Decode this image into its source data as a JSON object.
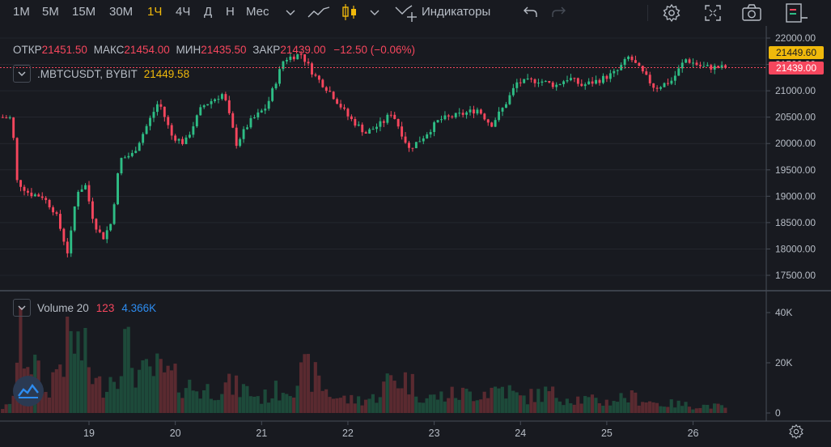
{
  "toolbar": {
    "timeframes": [
      "1М",
      "5М",
      "15М",
      "30М",
      "1Ч",
      "4Ч",
      "Д",
      "Н",
      "Мес"
    ],
    "active_timeframe": "1Ч",
    "indicators_label": "Индикаторы",
    "icons": [
      "chevron-down-icon",
      "line-chart-icon",
      "candlestick-icon",
      "chevron-down-icon",
      "indicators-icon",
      "undo-icon",
      "redo-icon",
      "settings-icon",
      "fullscreen-icon",
      "camera-icon",
      "exit-icon"
    ]
  },
  "legend": {
    "open_label": "ОТКР",
    "open_value": "21451.50",
    "high_label": "МАКС",
    "high_value": "21454.00",
    "low_label": "МИН",
    "low_value": "21435.50",
    "close_label": "ЗАКР",
    "close_value": "21439.00",
    "change": "−12.50 (−0.06%)"
  },
  "symbol": {
    "name": ".MBTCUSDT, BYBIT",
    "last": "21449.58"
  },
  "volume": {
    "title": "Volume 20",
    "count": "123",
    "value": "4.366K"
  },
  "price_labels": {
    "mark": "21449.60",
    "last": "21439.00"
  },
  "colors": {
    "up": "#2ebd85",
    "down": "#f6465d",
    "up_dim": "#1d4a3a",
    "down_dim": "#5a2a30",
    "accent": "#f0b90b",
    "grid": "#2b2f36",
    "text": "#b7bdc6"
  },
  "chart_data": {
    "type": "candlestick",
    "symbol": ".MBTCUSDT, BYBIT",
    "interval": "1h",
    "x_ticks": [
      "19",
      "20",
      "21",
      "22",
      "23",
      "24",
      "25",
      "26"
    ],
    "y_ticks": [
      "22000.00",
      "21500.00",
      "21000.00",
      "20500.00",
      "20000.00",
      "19500.00",
      "19000.00",
      "18500.00",
      "18000.00",
      "17500.00"
    ],
    "ylim": [
      17300,
      22100
    ],
    "volume_ticks": [
      "40K",
      "20K",
      "0"
    ],
    "volume_ylim": [
      0,
      42000
    ],
    "price_path": [
      {
        "day": 18.0,
        "price": 20500
      },
      {
        "day": 18.15,
        "price": 20480
      },
      {
        "day": 18.2,
        "price": 19300
      },
      {
        "day": 18.35,
        "price": 19050
      },
      {
        "day": 18.5,
        "price": 19000
      },
      {
        "day": 18.65,
        "price": 18700
      },
      {
        "day": 18.8,
        "price": 17900
      },
      {
        "day": 18.9,
        "price": 19100
      },
      {
        "day": 19.0,
        "price": 19200
      },
      {
        "day": 19.1,
        "price": 18500
      },
      {
        "day": 19.2,
        "price": 18200
      },
      {
        "day": 19.3,
        "price": 18500
      },
      {
        "day": 19.4,
        "price": 19700
      },
      {
        "day": 19.55,
        "price": 19800
      },
      {
        "day": 19.7,
        "price": 20300
      },
      {
        "day": 19.85,
        "price": 20800
      },
      {
        "day": 20.0,
        "price": 20150
      },
      {
        "day": 20.15,
        "price": 20000
      },
      {
        "day": 20.35,
        "price": 20700
      },
      {
        "day": 20.6,
        "price": 20950
      },
      {
        "day": 20.75,
        "price": 20000
      },
      {
        "day": 20.9,
        "price": 20400
      },
      {
        "day": 21.1,
        "price": 20700
      },
      {
        "day": 21.3,
        "price": 21600
      },
      {
        "day": 21.5,
        "price": 21700
      },
      {
        "day": 21.65,
        "price": 21300
      },
      {
        "day": 21.85,
        "price": 20950
      },
      {
        "day": 22.05,
        "price": 20500
      },
      {
        "day": 22.25,
        "price": 20200
      },
      {
        "day": 22.45,
        "price": 20400
      },
      {
        "day": 22.55,
        "price": 20600
      },
      {
        "day": 22.75,
        "price": 19900
      },
      {
        "day": 22.9,
        "price": 20100
      },
      {
        "day": 23.1,
        "price": 20450
      },
      {
        "day": 23.35,
        "price": 20550
      },
      {
        "day": 23.55,
        "price": 20650
      },
      {
        "day": 23.7,
        "price": 20350
      },
      {
        "day": 23.85,
        "price": 20700
      },
      {
        "day": 24.0,
        "price": 21150
      },
      {
        "day": 24.25,
        "price": 21200
      },
      {
        "day": 24.45,
        "price": 21100
      },
      {
        "day": 24.6,
        "price": 21250
      },
      {
        "day": 24.75,
        "price": 21100
      },
      {
        "day": 24.95,
        "price": 21200
      },
      {
        "day": 25.15,
        "price": 21350
      },
      {
        "day": 25.3,
        "price": 21650
      },
      {
        "day": 25.45,
        "price": 21350
      },
      {
        "day": 25.6,
        "price": 21050
      },
      {
        "day": 25.8,
        "price": 21200
      },
      {
        "day": 25.95,
        "price": 21600
      },
      {
        "day": 26.15,
        "price": 21450
      },
      {
        "day": 26.4,
        "price": 21440
      }
    ],
    "volume_profile": [
      {
        "day": 18.0,
        "k": 3
      },
      {
        "day": 18.1,
        "k": 4
      },
      {
        "day": 18.2,
        "k": 40
      },
      {
        "day": 18.35,
        "k": 28
      },
      {
        "day": 18.5,
        "k": 10
      },
      {
        "day": 18.65,
        "k": 27
      },
      {
        "day": 18.8,
        "k": 40
      },
      {
        "day": 18.95,
        "k": 32
      },
      {
        "day": 19.1,
        "k": 14
      },
      {
        "day": 19.3,
        "k": 22
      },
      {
        "day": 19.4,
        "k": 38
      },
      {
        "day": 19.6,
        "k": 20
      },
      {
        "day": 19.8,
        "k": 23
      },
      {
        "day": 20.0,
        "k": 18
      },
      {
        "day": 20.3,
        "k": 12
      },
      {
        "day": 20.6,
        "k": 15
      },
      {
        "day": 20.8,
        "k": 13
      },
      {
        "day": 21.0,
        "k": 8
      },
      {
        "day": 21.3,
        "k": 15
      },
      {
        "day": 21.55,
        "k": 23
      },
      {
        "day": 21.8,
        "k": 10
      },
      {
        "day": 22.0,
        "k": 7
      },
      {
        "day": 22.3,
        "k": 8
      },
      {
        "day": 22.5,
        "k": 19
      },
      {
        "day": 22.7,
        "k": 18
      },
      {
        "day": 22.9,
        "k": 8
      },
      {
        "day": 23.2,
        "k": 10
      },
      {
        "day": 23.5,
        "k": 11
      },
      {
        "day": 23.8,
        "k": 14
      },
      {
        "day": 24.0,
        "k": 8
      },
      {
        "day": 24.3,
        "k": 11
      },
      {
        "day": 24.5,
        "k": 9
      },
      {
        "day": 24.8,
        "k": 7
      },
      {
        "day": 25.0,
        "k": 6
      },
      {
        "day": 25.2,
        "k": 9
      },
      {
        "day": 25.4,
        "k": 8
      },
      {
        "day": 25.6,
        "k": 5
      },
      {
        "day": 25.8,
        "k": 5
      },
      {
        "day": 26.0,
        "k": 4
      },
      {
        "day": 26.2,
        "k": 4
      },
      {
        "day": 26.4,
        "k": 3
      }
    ]
  }
}
